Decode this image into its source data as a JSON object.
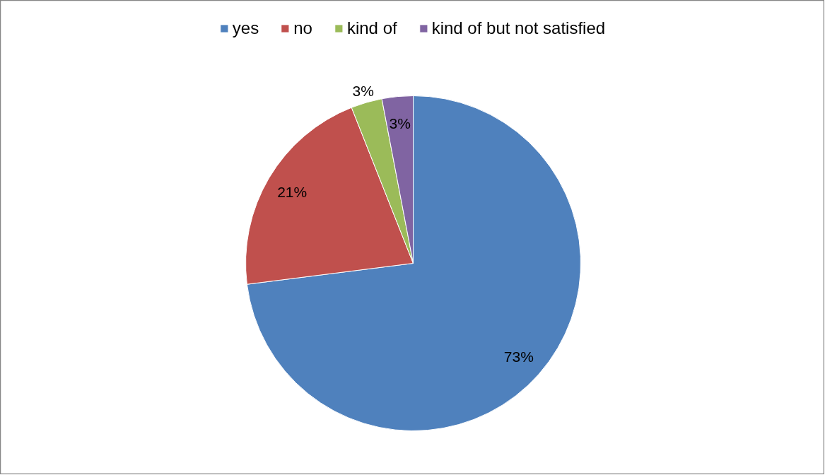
{
  "chart_data": {
    "type": "pie",
    "categories": [
      "yes",
      "no",
      "kind of",
      "kind of but not satisfied"
    ],
    "values": [
      73,
      21,
      3,
      3
    ],
    "colors": [
      "#4f81bd",
      "#c0504d",
      "#9bbb59",
      "#8064a2"
    ],
    "value_labels": [
      "73%",
      "21%",
      "3%",
      "3%"
    ],
    "legend": "top"
  }
}
